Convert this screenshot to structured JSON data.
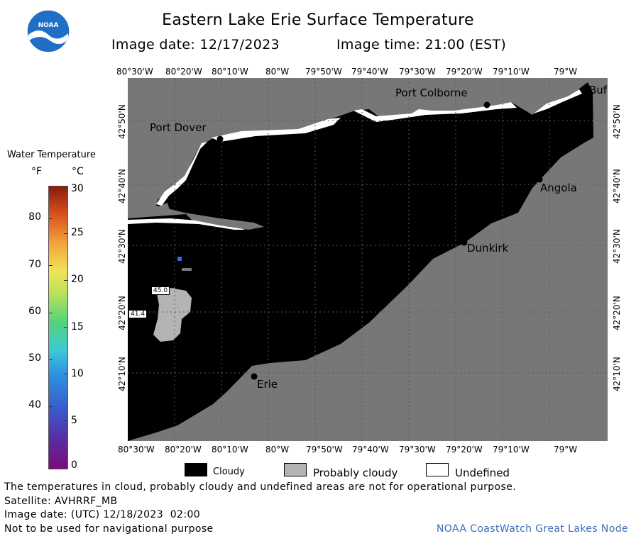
{
  "title": "Eastern Lake Erie Surface Temperature",
  "image_date_label": "Image date: 12/17/2023",
  "image_time_label": "Image time: 21:00 (EST)",
  "logo_text": "NOAA",
  "lon_labels": [
    "80°30'W",
    "80°20'W",
    "80°10'W",
    "80°W",
    "79°50'W",
    "79°40'W",
    "79°30'W",
    "79°20'W",
    "79°10'W",
    "79°W"
  ],
  "lat_labels": [
    "42°50'N",
    "42°40'N",
    "42°30'N",
    "42°20'N",
    "42°10'N"
  ],
  "cities": {
    "port_colborne": "Port Colborne",
    "port_dover": "Port Dover",
    "buffalo": "Buf",
    "angola": "Angola",
    "dunkirk": "Dunkirk",
    "erie": "Erie"
  },
  "map_values": [
    "45.0",
    "41.4"
  ],
  "legend": {
    "title": "Water Temperature",
    "unit_f": "°F",
    "unit_c": "°C",
    "f_ticks": [
      "80",
      "70",
      "60",
      "50",
      "40"
    ],
    "c_ticks": [
      "30",
      "25",
      "20",
      "15",
      "10",
      "5",
      "0"
    ]
  },
  "key": {
    "cloudy": "Cloudy",
    "probably_cloudy": "Probably cloudy",
    "undefined": "Undefined"
  },
  "footer": {
    "disclaimer": "The temperatures in cloud, probably cloudy and undefined areas are not for operational purpose.",
    "satellite": "Satellite: AVHRRF_MB",
    "utc_date": "Image date: (UTC) 12/18/2023  02:00",
    "nav_warning": "Not to be used for navigational purpose",
    "credit": "NOAA CoastWatch Great Lakes Node"
  },
  "colors": {
    "land": "#777777",
    "cloud": "#000000",
    "probably_cloudy": "#b4b4b4",
    "undefined": "#ffffff",
    "noaa_blue": "#1f72c4"
  }
}
